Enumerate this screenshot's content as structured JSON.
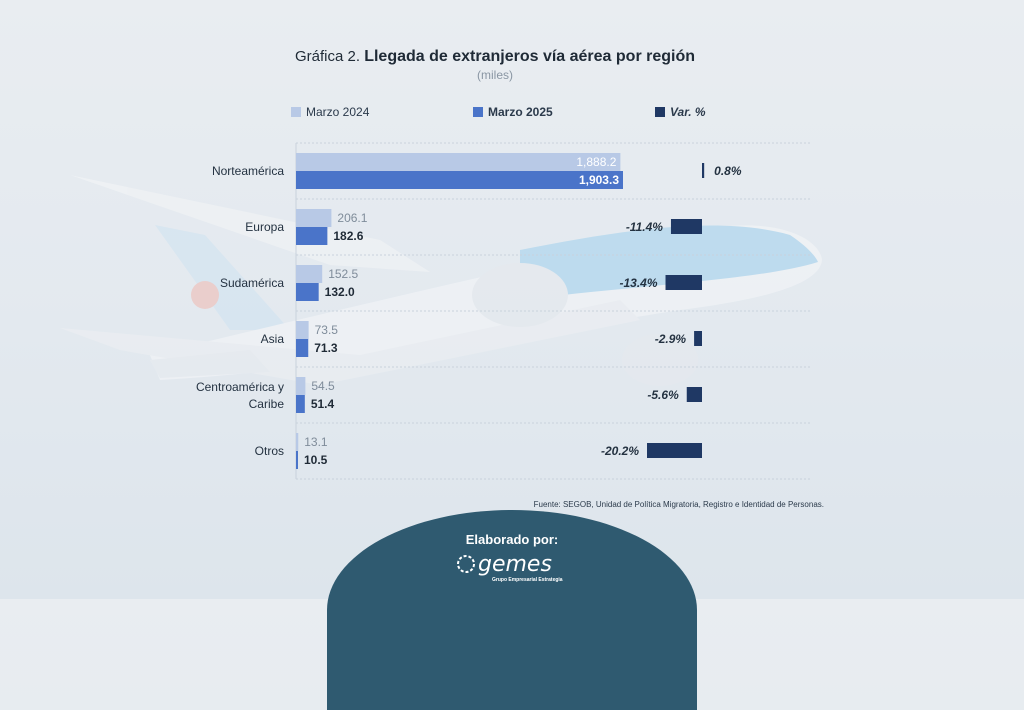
{
  "chart_data": {
    "type": "bar",
    "title_prefix": "Gráfica 2.",
    "title": "Llegada de extranjeros vía aérea por región",
    "subtitle": "(miles)",
    "categories": [
      "Norteamérica",
      "Europa",
      "Sudamérica",
      "Asia",
      "Centroamérica y Caribe",
      "Otros"
    ],
    "category_lines": [
      [
        "Norteamérica"
      ],
      [
        "Europa"
      ],
      [
        "Sudamérica"
      ],
      [
        "Asia"
      ],
      [
        "Centroamérica y",
        "Caribe"
      ],
      [
        "Otros"
      ]
    ],
    "series": [
      {
        "name": "Marzo 2024",
        "values": [
          1888.2,
          206.1,
          152.5,
          73.5,
          54.5,
          13.1
        ],
        "labels": [
          "1,888.2",
          "206.1",
          "152.5",
          "73.5",
          "54.5",
          "13.1"
        ],
        "color": "#b8c9e6"
      },
      {
        "name": "Marzo 2025",
        "values": [
          1903.3,
          182.6,
          132.0,
          71.3,
          51.4,
          10.5
        ],
        "labels": [
          "1,903.3",
          "182.6",
          "132.0",
          "71.3",
          "51.4",
          "10.5"
        ],
        "color": "#4a74c9"
      },
      {
        "name": "Var. %",
        "values": [
          0.8,
          -11.4,
          -13.4,
          -2.9,
          -5.6,
          -20.2
        ],
        "labels": [
          "0.8%",
          "-11.4%",
          "-13.4%",
          "-2.9%",
          "-5.6%",
          "-20.2%"
        ],
        "color": "#1f3864"
      }
    ],
    "orientation": "horizontal",
    "legend": "top"
  },
  "source": "Fuente: SEGOB, Unidad de Política Migratoria, Registro e Identidad de Personas.",
  "footer": {
    "label": "Elaborado por:",
    "logo_text": "gemes",
    "logo_subtext": "Grupo Empresarial Estrategia"
  }
}
